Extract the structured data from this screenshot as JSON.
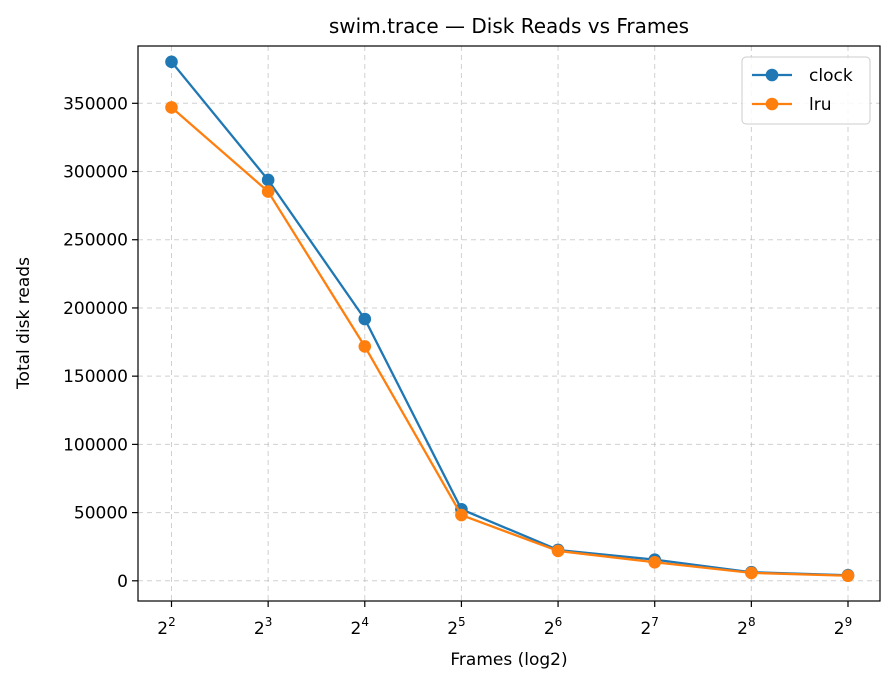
{
  "chart_data": {
    "type": "line",
    "title": "swim.trace — Disk Reads vs Frames",
    "xlabel": "Frames (log2)",
    "ylabel": "Total disk reads",
    "x_scale": "log2",
    "x": [
      4,
      8,
      16,
      32,
      64,
      128,
      256,
      512
    ],
    "x_tick_labels": [
      {
        "base": "2",
        "exp": "2"
      },
      {
        "base": "2",
        "exp": "3"
      },
      {
        "base": "2",
        "exp": "4"
      },
      {
        "base": "2",
        "exp": "5"
      },
      {
        "base": "2",
        "exp": "6"
      },
      {
        "base": "2",
        "exp": "7"
      },
      {
        "base": "2",
        "exp": "8"
      },
      {
        "base": "2",
        "exp": "9"
      }
    ],
    "y_ticks": [
      0,
      50000,
      100000,
      150000,
      200000,
      250000,
      300000,
      350000
    ],
    "ylim": [
      -14800,
      392000
    ],
    "grid": true,
    "legend_position": "top-right",
    "series": [
      {
        "name": "clock",
        "color": "#1f77b4",
        "marker": "circle",
        "values": [
          380400,
          293800,
          191900,
          52400,
          22600,
          15500,
          6300,
          4100
        ]
      },
      {
        "name": "lru",
        "color": "#ff7f0e",
        "marker": "circle",
        "values": [
          347000,
          285300,
          171800,
          48200,
          21900,
          13600,
          5800,
          3700
        ]
      }
    ]
  }
}
